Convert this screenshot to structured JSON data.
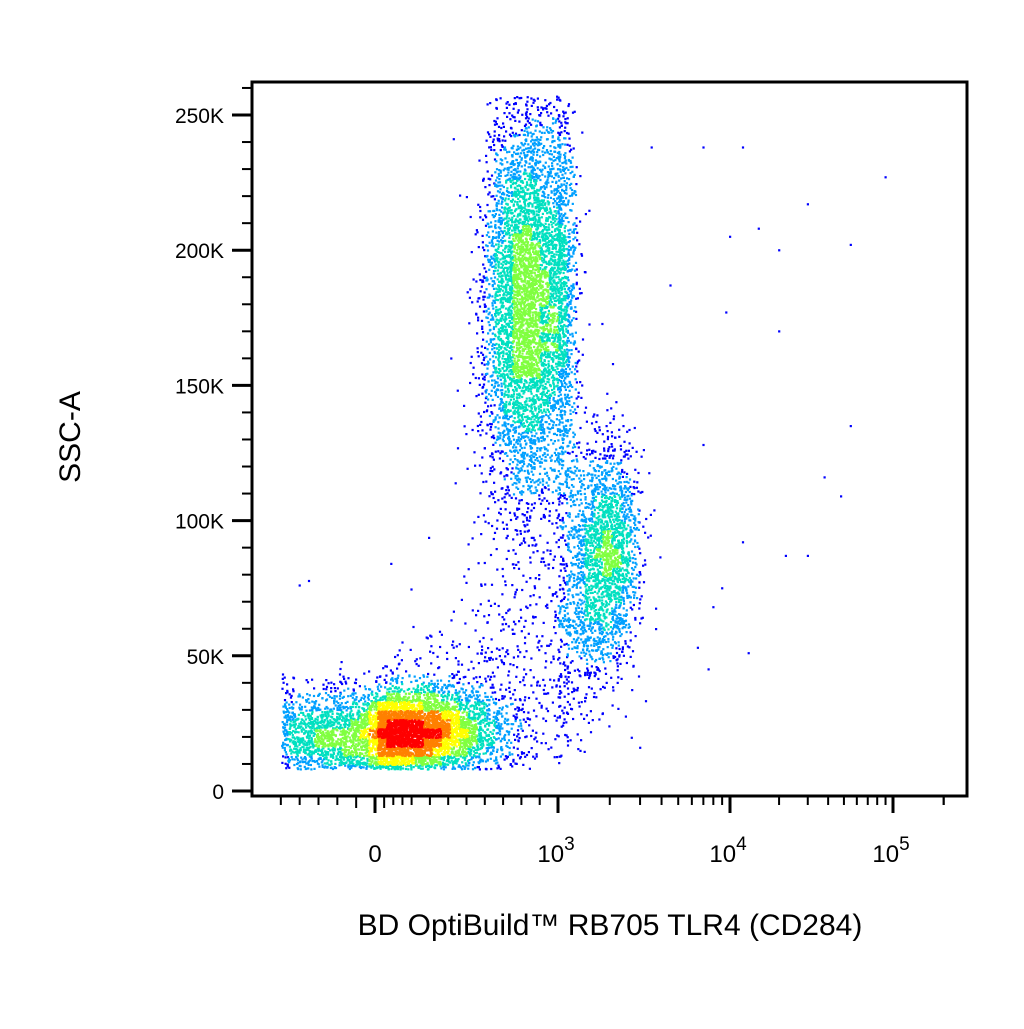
{
  "chart_data": {
    "type": "scatter",
    "title": "",
    "xlabel": "BD OptiBuild™ RB705 TLR4 (CD284)",
    "ylabel": "SSC-A",
    "x_scale": "biexponential",
    "x_range": [
      -300,
      250000
    ],
    "y_scale": "linear",
    "ylim": [
      0,
      262144
    ],
    "y_ticks": [
      {
        "value": 0,
        "label": "0"
      },
      {
        "value": 50000,
        "label": "50K"
      },
      {
        "value": 100000,
        "label": "100K"
      },
      {
        "value": 150000,
        "label": "150K"
      },
      {
        "value": 200000,
        "label": "200K"
      },
      {
        "value": 250000,
        "label": "250K"
      }
    ],
    "x_ticks": [
      {
        "value": 0,
        "label": "0"
      },
      {
        "value": 1000,
        "label": "10",
        "exponent": "3"
      },
      {
        "value": 10000,
        "label": "10",
        "exponent": "4"
      },
      {
        "value": 100000,
        "label": "10",
        "exponent": "5"
      }
    ],
    "color_scale": [
      "#0000ff",
      "#00a0ff",
      "#00e0c0",
      "#80ff40",
      "#ffff00",
      "#ff8000",
      "#ff0000"
    ],
    "grid": false,
    "legend": "none",
    "populations": [
      {
        "x_center": 130,
        "x_spread": 280,
        "y_center": 22000,
        "y_spread": 8000,
        "count": 6500,
        "peak_color": "#ff0000"
      },
      {
        "x_center": 850,
        "x_spread": 180,
        "y_center": 180000,
        "y_spread": 38000,
        "count": 6000,
        "peak_color": "#ff8000"
      },
      {
        "x_center": 1800,
        "x_spread": 500,
        "y_center": 90000,
        "y_spread": 22000,
        "count": 1600,
        "peak_color": "#00e0c0"
      },
      {
        "x_center": 700,
        "x_spread": 500,
        "y_center": 65000,
        "y_spread": 30000,
        "count": 1200,
        "peak_color": "#0000ff"
      }
    ],
    "outlier_points": [
      [
        7000,
        238000
      ],
      [
        12000,
        238000
      ],
      [
        3500,
        238000
      ],
      [
        30000,
        217000
      ],
      [
        90000,
        227000
      ],
      [
        15000,
        208000
      ],
      [
        10000,
        205000
      ],
      [
        55000,
        202000
      ],
      [
        20000,
        200000
      ],
      [
        4500,
        187000
      ],
      [
        9500,
        177000
      ],
      [
        20000,
        170000
      ],
      [
        55000,
        135000
      ],
      [
        7000,
        128000
      ],
      [
        38000,
        116000
      ],
      [
        48000,
        109000
      ],
      [
        12000,
        92000
      ],
      [
        22000,
        87000
      ],
      [
        30000,
        87000
      ],
      [
        8000,
        68000
      ],
      [
        6500,
        53000
      ],
      [
        13000,
        51000
      ],
      [
        7500,
        45000
      ],
      [
        3000,
        16000
      ],
      [
        9000,
        75000
      ]
    ]
  }
}
